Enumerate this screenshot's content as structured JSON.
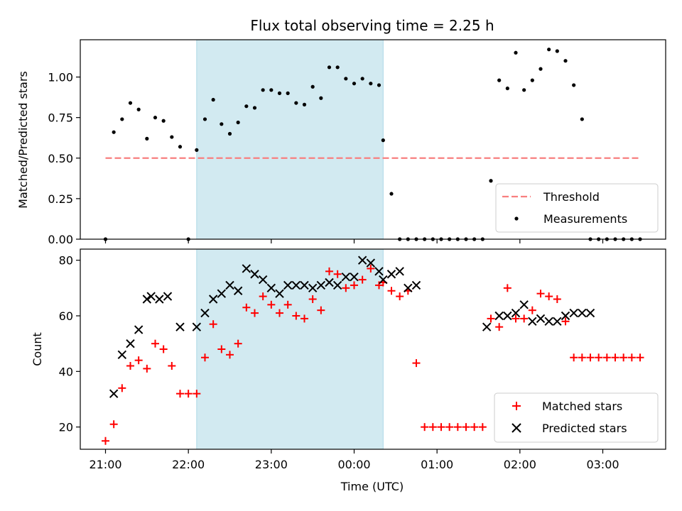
{
  "chart_data": [
    {
      "type": "scatter",
      "title": "Flux total observing time = 2.25 h",
      "xlabel": "",
      "ylabel": "Matched/Predicted stars",
      "ylim": [
        0,
        1.23
      ],
      "yticks": [
        "0.00",
        "0.25",
        "0.50",
        "0.75",
        "1.00"
      ],
      "shaded_interval": [
        "22:06",
        "00:21"
      ],
      "legend": {
        "placement": "lower-right",
        "entries": [
          "Threshold",
          "Measurements"
        ]
      },
      "threshold": {
        "name": "Threshold",
        "y": 0.5,
        "x_start": "21:00",
        "x_end": "03:27"
      },
      "series": [
        {
          "name": "Measurements",
          "x": [
            "21:00",
            "21:06",
            "21:12",
            "21:18",
            "21:24",
            "21:30",
            "21:36",
            "21:42",
            "21:48",
            "21:54",
            "22:00",
            "22:06",
            "22:12",
            "22:18",
            "22:24",
            "22:30",
            "22:36",
            "22:42",
            "22:48",
            "22:54",
            "23:00",
            "23:06",
            "23:12",
            "23:18",
            "23:24",
            "23:30",
            "23:36",
            "23:42",
            "23:48",
            "23:54",
            "00:00",
            "00:06",
            "00:12",
            "00:18",
            "00:21",
            "00:27",
            "00:33",
            "00:39",
            "00:45",
            "00:51",
            "00:57",
            "01:03",
            "01:09",
            "01:15",
            "01:21",
            "01:27",
            "01:33",
            "01:39",
            "01:45",
            "01:51",
            "01:57",
            "02:03",
            "02:09",
            "02:15",
            "02:21",
            "02:27",
            "02:33",
            "02:39",
            "02:45",
            "02:51",
            "02:57",
            "03:03",
            "03:09",
            "03:15",
            "03:21",
            "03:27"
          ],
          "y": [
            0.0,
            0.66,
            0.74,
            0.84,
            0.8,
            0.62,
            0.75,
            0.73,
            0.63,
            0.57,
            0.0,
            0.55,
            0.74,
            0.86,
            0.71,
            0.65,
            0.72,
            0.82,
            0.81,
            0.92,
            0.92,
            0.9,
            0.9,
            0.84,
            0.83,
            0.94,
            0.87,
            1.06,
            1.06,
            0.99,
            0.96,
            0.99,
            0.96,
            0.95,
            0.61,
            0.28,
            0.0,
            0.0,
            0.0,
            0.0,
            0.0,
            0.0,
            0.0,
            0.0,
            0.0,
            0.0,
            0.0,
            0.36,
            0.98,
            0.93,
            1.15,
            0.92,
            0.98,
            1.05,
            1.17,
            1.16,
            1.1,
            0.95,
            0.74,
            0.0,
            0.0,
            0.0,
            0.0,
            0.0,
            0.0,
            0.0
          ]
        }
      ]
    },
    {
      "type": "scatter",
      "title": "",
      "xlabel": "Time (UTC)",
      "ylabel": "Count",
      "ylim": [
        12,
        84
      ],
      "yticks": [
        "20",
        "40",
        "60",
        "80"
      ],
      "xticks": [
        "21:00",
        "22:00",
        "23:00",
        "00:00",
        "01:00",
        "02:00",
        "03:00"
      ],
      "shaded_interval": [
        "22:06",
        "00:21"
      ],
      "legend": {
        "placement": "lower-right",
        "entries": [
          "Matched stars",
          "Predicted stars"
        ]
      },
      "series": [
        {
          "name": "Matched stars",
          "x": [
            "21:00",
            "21:06",
            "21:12",
            "21:18",
            "21:24",
            "21:30",
            "21:36",
            "21:42",
            "21:48",
            "21:54",
            "22:00",
            "22:06",
            "22:12",
            "22:18",
            "22:24",
            "22:30",
            "22:36",
            "22:42",
            "22:48",
            "22:54",
            "23:00",
            "23:06",
            "23:12",
            "23:18",
            "23:24",
            "23:30",
            "23:36",
            "23:42",
            "23:48",
            "23:54",
            "00:00",
            "00:06",
            "00:12",
            "00:18",
            "00:21",
            "00:27",
            "00:33",
            "00:39",
            "00:45",
            "00:51",
            "00:57",
            "01:03",
            "01:09",
            "01:15",
            "01:21",
            "01:27",
            "01:33",
            "01:39",
            "01:45",
            "01:51",
            "01:57",
            "02:03",
            "02:09",
            "02:15",
            "02:21",
            "02:27",
            "02:33",
            "02:39",
            "02:45",
            "02:51",
            "02:57",
            "03:03",
            "03:09",
            "03:15",
            "03:21",
            "03:27"
          ],
          "y": [
            15,
            21,
            34,
            42,
            44,
            41,
            50,
            48,
            42,
            32,
            32,
            32,
            45,
            57,
            48,
            46,
            50,
            63,
            61,
            67,
            64,
            61,
            64,
            60,
            59,
            66,
            62,
            76,
            75,
            70,
            71,
            73,
            77,
            71,
            72,
            69,
            67,
            69,
            43,
            20,
            20,
            20,
            20,
            20,
            20,
            20,
            20,
            59,
            56,
            70,
            59,
            59,
            62,
            68,
            67,
            66,
            58,
            45,
            45,
            45,
            45,
            45,
            45,
            45,
            45,
            45
          ]
        },
        {
          "name": "Predicted stars",
          "x": [
            "21:06",
            "21:12",
            "21:18",
            "21:24",
            "21:30",
            "21:33",
            "21:39",
            "21:45",
            "21:54",
            "22:06",
            "22:12",
            "22:18",
            "22:24",
            "22:30",
            "22:36",
            "22:42",
            "22:48",
            "22:54",
            "23:00",
            "23:06",
            "23:12",
            "23:18",
            "23:24",
            "23:30",
            "23:36",
            "23:42",
            "23:48",
            "23:54",
            "00:00",
            "00:06",
            "00:12",
            "00:18",
            "00:21",
            "00:27",
            "00:33",
            "00:39",
            "00:45",
            "01:36",
            "01:45",
            "01:51",
            "01:57",
            "02:03",
            "02:09",
            "02:15",
            "02:21",
            "02:27",
            "02:33",
            "02:39",
            "02:45",
            "02:51"
          ],
          "y": [
            32,
            46,
            50,
            55,
            66,
            67,
            66,
            67,
            56,
            56,
            61,
            66,
            68,
            71,
            69,
            77,
            75,
            73,
            70,
            68,
            71,
            71,
            71,
            70,
            71,
            72,
            71,
            74,
            74,
            80,
            79,
            76,
            73,
            75,
            76,
            70,
            71,
            56,
            60,
            60,
            61,
            64,
            58,
            59,
            58,
            58,
            60,
            61,
            61,
            61
          ]
        }
      ]
    }
  ]
}
